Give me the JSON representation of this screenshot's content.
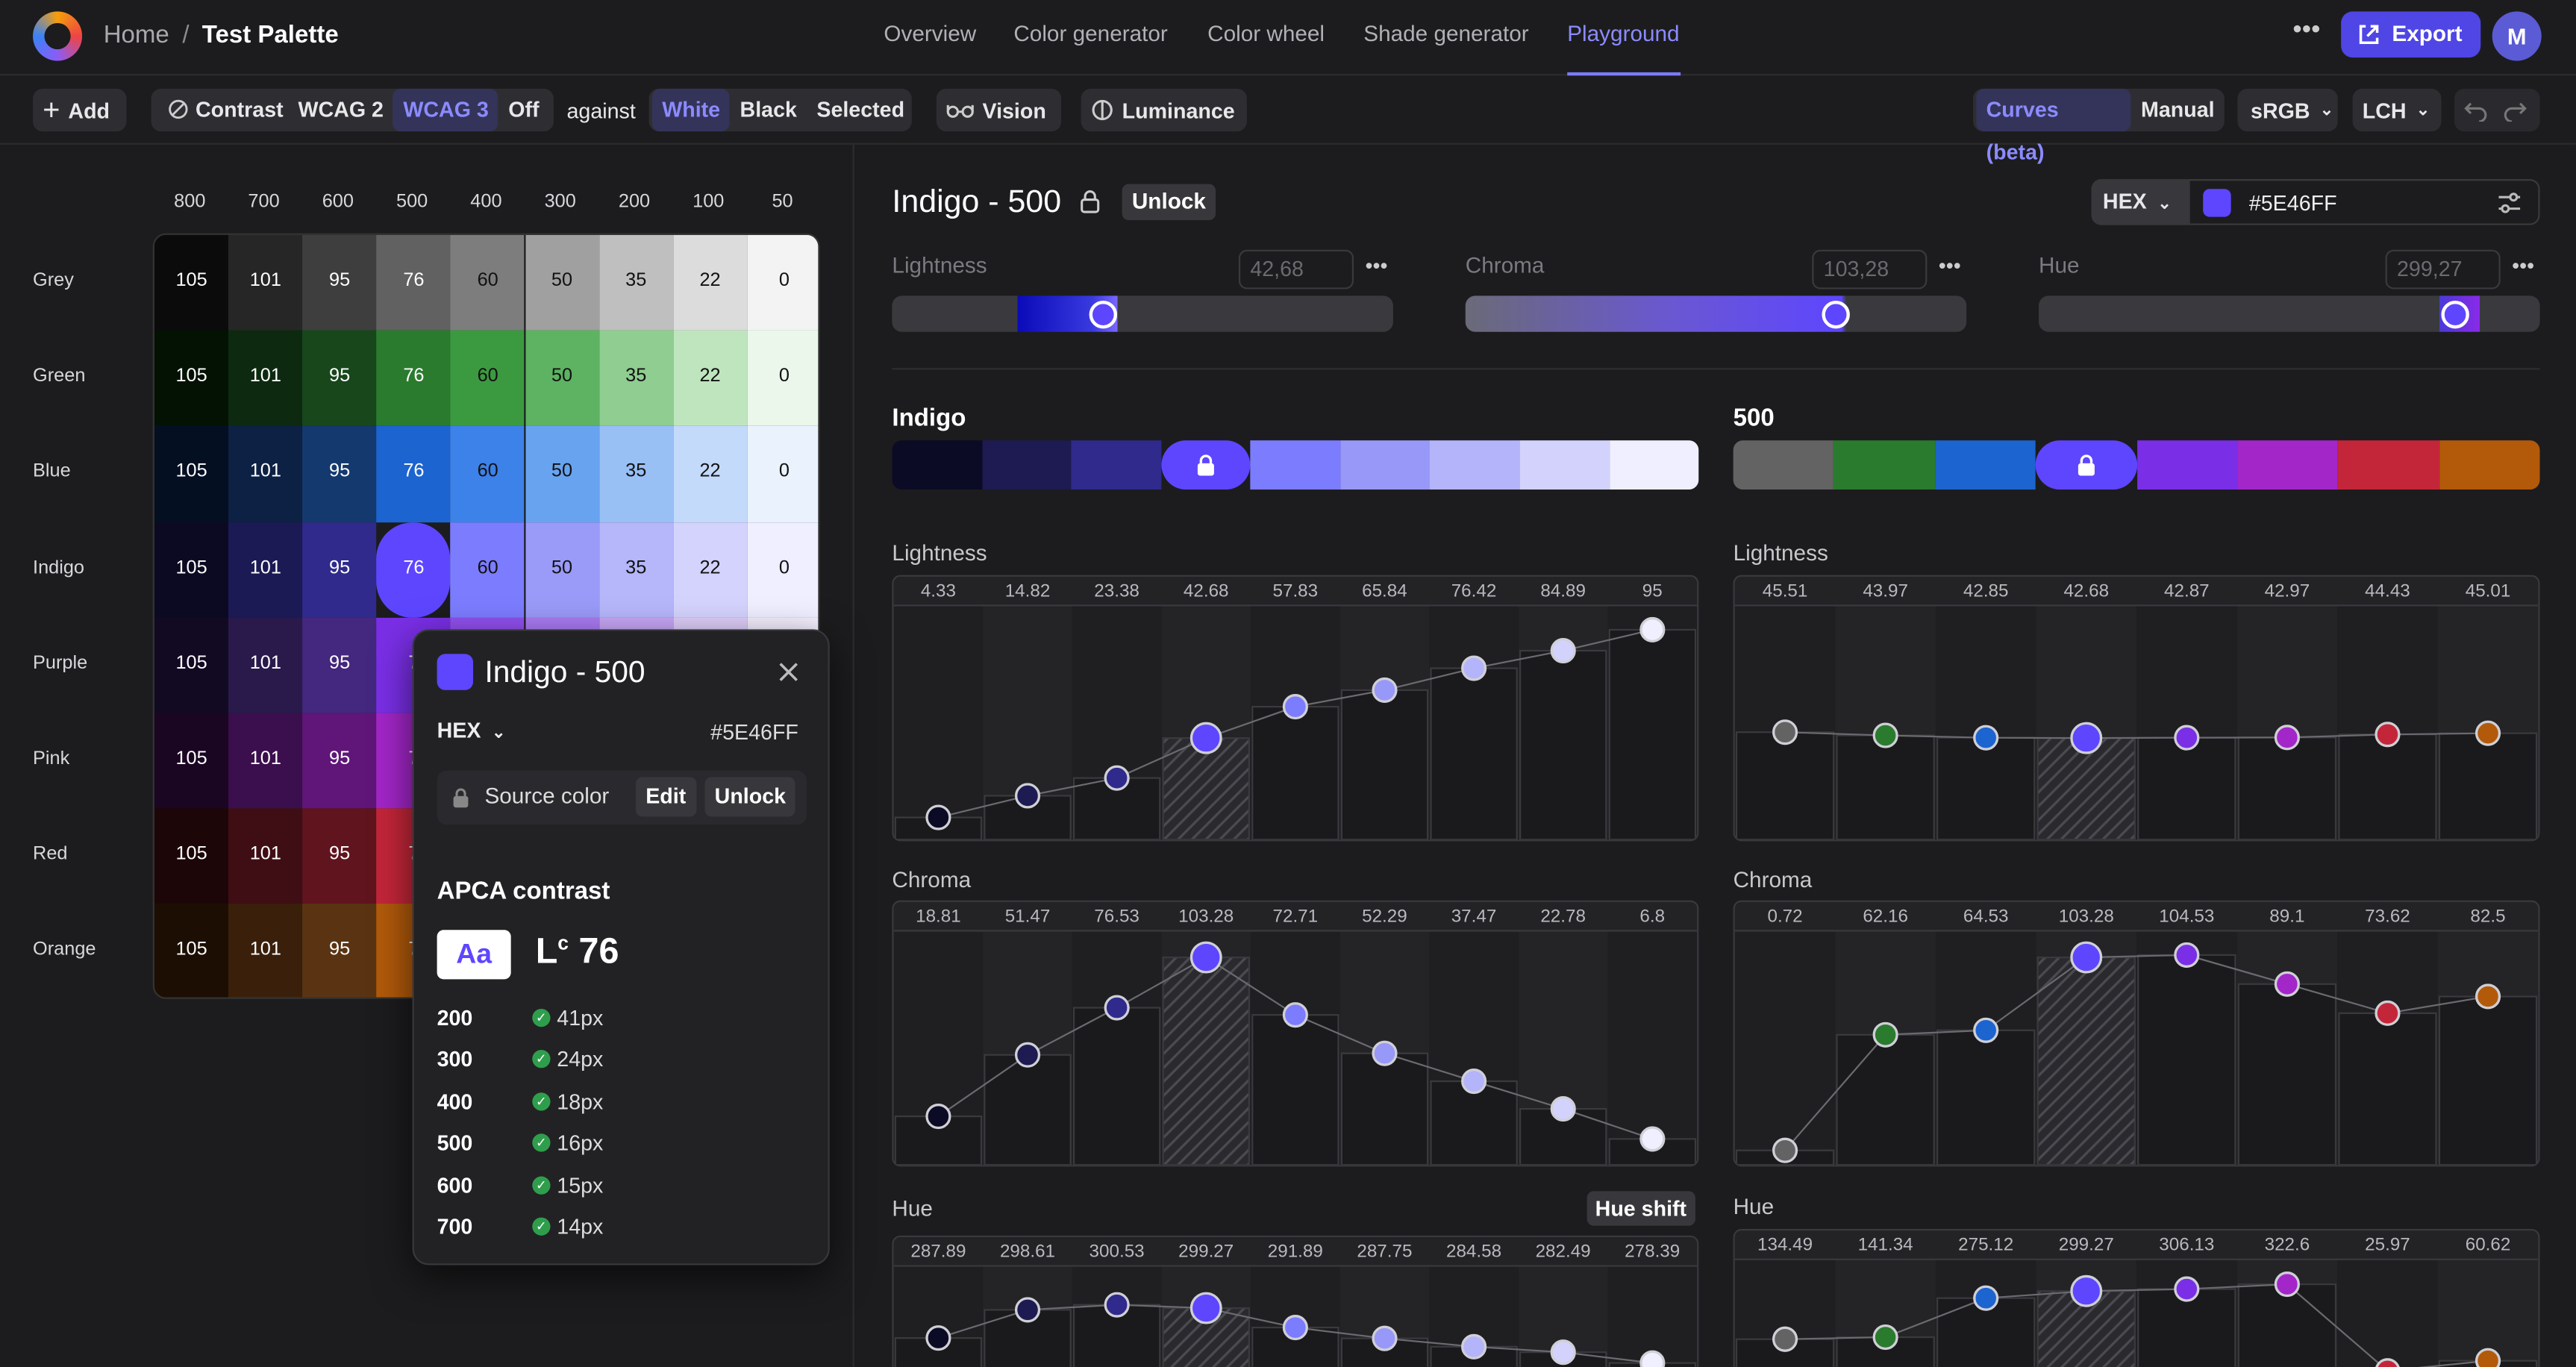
{
  "header": {
    "home": "Home",
    "separator": "/",
    "project": "Test Palette",
    "nav": [
      "Overview",
      "Color generator",
      "Color wheel",
      "Shade generator",
      "Playground"
    ],
    "active_nav": "Playground",
    "more": "•••",
    "export": "Export",
    "avatar": "M"
  },
  "toolbar": {
    "add": "Add",
    "contrast": "Contrast",
    "wcag2": "WCAG 2",
    "wcag3": "WCAG 3",
    "off": "Off",
    "against": "against",
    "white": "White",
    "black": "Black",
    "selected": "Selected",
    "vision": "Vision",
    "luminance": "Luminance",
    "curves": "Curves (beta)",
    "manual": "Manual",
    "gamut": "sRGB",
    "space": "LCH"
  },
  "palette": {
    "shades": [
      "800",
      "700",
      "600",
      "500",
      "400",
      "300",
      "200",
      "100",
      "50"
    ],
    "rows": [
      {
        "name": "Grey",
        "colors": [
          "#0b0b0b",
          "#262626",
          "#3e3e3e",
          "#616161",
          "#7d7d7d",
          "#a0a0a0",
          "#bfbfbf",
          "#dcdcdc",
          "#f3f3f3"
        ],
        "values": [
          "105",
          "101",
          "95",
          "76",
          "60",
          "50",
          "35",
          "22",
          "0"
        ]
      },
      {
        "name": "Green",
        "colors": [
          "#041204",
          "#0d2a10",
          "#17471b",
          "#2a7b2e",
          "#3b9a40",
          "#5db362",
          "#8fcd91",
          "#bfe5bf",
          "#eaf7ea"
        ],
        "values": [
          "105",
          "101",
          "95",
          "76",
          "60",
          "50",
          "35",
          "22",
          "0"
        ]
      },
      {
        "name": "Blue",
        "colors": [
          "#050f22",
          "#0d2144",
          "#14396e",
          "#1c64cf",
          "#3d82e8",
          "#68a3f0",
          "#98c0f5",
          "#c3dafa",
          "#eaf2fd"
        ],
        "values": [
          "105",
          "101",
          "95",
          "76",
          "60",
          "50",
          "35",
          "22",
          "0"
        ]
      },
      {
        "name": "Indigo",
        "colors": [
          "#0b0a22",
          "#1c1a54",
          "#2f2a8c",
          "#5e46ff",
          "#7c7cff",
          "#9a9af8",
          "#b6b6fb",
          "#d3d3fd",
          "#efefff"
        ],
        "values": [
          "105",
          "101",
          "95",
          "76",
          "60",
          "50",
          "35",
          "22",
          "0"
        ]
      },
      {
        "name": "Purple",
        "colors": [
          "#120a22",
          "#2a1a4c",
          "#44277e",
          "#7a2fe6",
          "#9251f0",
          "#ac7cf5",
          "#c8a8f8",
          "#e0cffb",
          "#f5effe"
        ],
        "values": [
          "105",
          "101",
          "95",
          "7",
          "",
          "",
          "",
          "",
          ""
        ]
      },
      {
        "name": "Pink",
        "colors": [
          "#1a0622",
          "#3b0e4d",
          "#5f1678",
          "#a326c9",
          "#b64fd6",
          "#c87ae2",
          "#dca8ee",
          "#ecd2f6",
          "#faf0fd"
        ],
        "values": [
          "105",
          "101",
          "95",
          "7",
          "",
          "",
          "",
          "",
          ""
        ]
      },
      {
        "name": "Red",
        "colors": [
          "#1d0608",
          "#3f0e14",
          "#5f141e",
          "#c42639",
          "#d9505f",
          "#e47e89",
          "#eeaab1",
          "#f6d3d7",
          "#fdf0f1"
        ],
        "values": [
          "105",
          "101",
          "95",
          "7",
          "",
          "",
          "",
          "",
          ""
        ]
      },
      {
        "name": "Orange",
        "colors": [
          "#1d0e04",
          "#3a200b",
          "#5a3412",
          "#b25a0a",
          "#cc7a2a",
          "#db9a55",
          "#e8bb88",
          "#f3dcbf",
          "#fcf3ea"
        ],
        "values": [
          "105",
          "101",
          "95",
          "7",
          "",
          "",
          "",
          "",
          ""
        ]
      }
    ]
  },
  "popup": {
    "title": "Indigo - 500",
    "format": "HEX",
    "hex": "#5E46FF",
    "source": "Source color",
    "edit": "Edit",
    "unlock": "Unlock",
    "apca_title": "APCA contrast",
    "sample": "Aa",
    "lc": "L",
    "lc_sup": "c",
    "lc_value": "76",
    "sizes": [
      {
        "weight": "200",
        "size": "41px"
      },
      {
        "weight": "300",
        "size": "24px"
      },
      {
        "weight": "400",
        "size": "18px"
      },
      {
        "weight": "500",
        "size": "16px"
      },
      {
        "weight": "600",
        "size": "15px"
      },
      {
        "weight": "700",
        "size": "14px"
      }
    ]
  },
  "editor": {
    "title": "Indigo - 500",
    "unlock": "Unlock",
    "format": "HEX",
    "hex_value": "#5E46FF",
    "swatch_color": "#5e46ff",
    "lightness_label": "Lightness",
    "lightness_value": "42,68",
    "lightness_level": 0.42,
    "chroma_label": "Chroma",
    "chroma_value": "103,28",
    "chroma_level": 0.74,
    "hue_label": "Hue",
    "hue_value": "299,27",
    "hue_level": 0.83,
    "more": "•••"
  },
  "scales": {
    "left_title": "Indigo",
    "right_title": "500",
    "left_strip": [
      "#0c0b25",
      "#1d1b52",
      "#2f2a8c",
      "#5e46ff",
      "#7c7cff",
      "#9898f8",
      "#b4b4fb",
      "#d2d2fd",
      "#efefff"
    ],
    "right_strip": [
      "#636363",
      "#2a7b2e",
      "#1c64cf",
      "#5e46ff",
      "#7a2fe6",
      "#a326c9",
      "#c42639",
      "#b25a0a"
    ],
    "left_lightness": [
      "4.33",
      "14.82",
      "23.38",
      "42.68",
      "57.83",
      "65.84",
      "76.42",
      "84.89",
      "95"
    ],
    "left_chroma": [
      "18.81",
      "51.47",
      "76.53",
      "103.28",
      "72.71",
      "52.29",
      "37.47",
      "22.78",
      "6.8"
    ],
    "left_hue": [
      "287.89",
      "298.61",
      "300.53",
      "299.27",
      "291.89",
      "287.75",
      "284.58",
      "282.49",
      "278.39"
    ],
    "right_lightness": [
      "45.51",
      "43.97",
      "42.85",
      "42.68",
      "42.87",
      "42.97",
      "44.43",
      "45.01"
    ],
    "right_chroma": [
      "0.72",
      "62.16",
      "64.53",
      "103.28",
      "104.53",
      "89.1",
      "73.62",
      "82.5"
    ],
    "right_hue": [
      "134.49",
      "141.34",
      "275.12",
      "299.27",
      "306.13",
      "322.6",
      "25.97",
      "60.62"
    ],
    "lightness_label": "Lightness",
    "chroma_label": "Chroma",
    "hue_label": "Hue",
    "hue_shift": "Hue shift"
  }
}
